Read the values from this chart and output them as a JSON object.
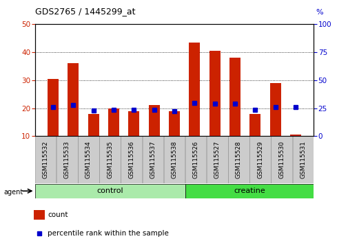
{
  "title": "GDS2765 / 1445299_at",
  "samples": [
    "GSM115532",
    "GSM115533",
    "GSM115534",
    "GSM115535",
    "GSM115536",
    "GSM115537",
    "GSM115538",
    "GSM115526",
    "GSM115527",
    "GSM115528",
    "GSM115529",
    "GSM115530",
    "GSM115531"
  ],
  "counts": [
    30.5,
    36.0,
    18.0,
    20.0,
    19.0,
    21.0,
    19.0,
    43.5,
    40.5,
    38.0,
    18.0,
    29.0,
    10.5
  ],
  "percentiles": [
    26.0,
    28.0,
    23.0,
    23.5,
    23.5,
    23.5,
    22.5,
    29.5,
    29.0,
    29.0,
    23.5,
    26.0,
    26.0
  ],
  "groups": [
    {
      "label": "control",
      "start": 0,
      "end": 7,
      "color": "#AAEAAA"
    },
    {
      "label": "creatine",
      "start": 7,
      "end": 13,
      "color": "#44DD44"
    }
  ],
  "bar_color": "#CC2200",
  "dot_color": "#0000CC",
  "ylim_left": [
    10,
    50
  ],
  "ylim_right": [
    0,
    100
  ],
  "yticks_left": [
    10,
    20,
    30,
    40,
    50
  ],
  "yticks_right": [
    0,
    25,
    50,
    75,
    100
  ],
  "legend_count_label": "count",
  "legend_pct_label": "percentile rank within the sample",
  "group_label": "agent",
  "tick_area_color": "#CCCCCC"
}
